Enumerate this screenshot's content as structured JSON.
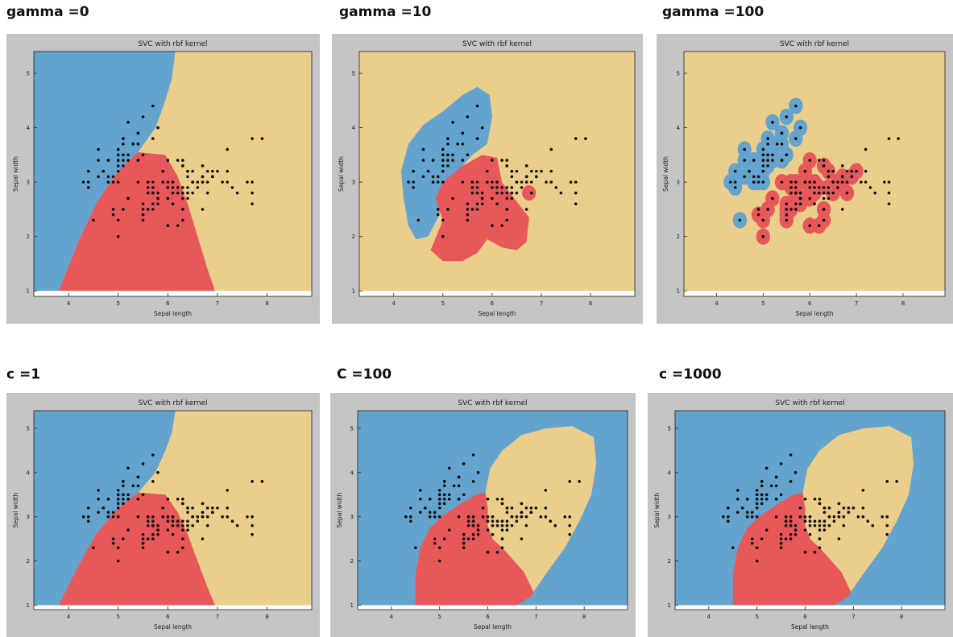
{
  "chart_data": [
    {
      "type": "scatter",
      "panel_label": "gamma =0",
      "title": "SVC with rbf kernel",
      "xlabel": "Sepal length",
      "ylabel": "Sepal width",
      "xlim": [
        3.3,
        8.9
      ],
      "ylim": [
        0.9,
        5.4
      ],
      "xticks": [
        4,
        5,
        6,
        7,
        8
      ],
      "yticks": [
        1,
        2,
        3,
        4,
        5
      ],
      "regions": [
        {
          "class": "blue",
          "color": "#64a3cd",
          "polygon": [
            [
              3.3,
              1
            ],
            [
              3.3,
              5.4
            ],
            [
              6.15,
              5.4
            ],
            [
              6.08,
              4.9
            ],
            [
              5.95,
              4.5
            ],
            [
              5.75,
              4.0
            ],
            [
              5.4,
              3.55
            ],
            [
              5.0,
              3.2
            ],
            [
              4.55,
              2.6
            ],
            [
              4.2,
              1.9
            ],
            [
              4.0,
              1.45
            ],
            [
              3.8,
              1
            ],
            [
              3.3,
              1
            ]
          ]
        },
        {
          "class": "red",
          "color": "#e8575a",
          "polygon": [
            [
              3.8,
              1
            ],
            [
              4.0,
              1.45
            ],
            [
              4.2,
              1.9
            ],
            [
              4.55,
              2.6
            ],
            [
              5.0,
              3.2
            ],
            [
              5.4,
              3.55
            ],
            [
              5.95,
              3.5
            ],
            [
              6.2,
              3.1
            ],
            [
              6.4,
              2.6
            ],
            [
              6.6,
              2.0
            ],
            [
              6.8,
              1.4
            ],
            [
              6.95,
              1
            ],
            [
              3.8,
              1
            ]
          ]
        }
      ]
    },
    {
      "type": "scatter",
      "panel_label": "gamma =10",
      "title": "SVC with rbf kernel",
      "xlabel": "Sepal length",
      "ylabel": "Sepal width",
      "xlim": [
        3.3,
        8.9
      ],
      "ylim": [
        0.9,
        5.4
      ],
      "xticks": [
        4,
        5,
        6,
        7,
        8
      ],
      "yticks": [
        1,
        2,
        3,
        4,
        5
      ],
      "regions": [
        {
          "class": "blue",
          "color": "#64a3cd",
          "polygon": [
            [
              4.3,
              2.2
            ],
            [
              4.2,
              2.7
            ],
            [
              4.15,
              3.2
            ],
            [
              4.3,
              3.7
            ],
            [
              4.6,
              4.05
            ],
            [
              5.0,
              4.3
            ],
            [
              5.4,
              4.6
            ],
            [
              5.7,
              4.75
            ],
            [
              5.95,
              4.6
            ],
            [
              6.0,
              4.2
            ],
            [
              5.9,
              3.7
            ],
            [
              5.6,
              3.5
            ],
            [
              5.3,
              3.2
            ],
            [
              5.1,
              2.85
            ],
            [
              4.9,
              2.35
            ],
            [
              4.7,
              2.0
            ],
            [
              4.45,
              1.95
            ]
          ]
        },
        {
          "class": "red",
          "color": "#e8575a",
          "polygon": [
            [
              5.0,
              2.3
            ],
            [
              4.85,
              2.7
            ],
            [
              5.0,
              3.0
            ],
            [
              5.4,
              3.3
            ],
            [
              5.8,
              3.5
            ],
            [
              6.1,
              3.45
            ],
            [
              6.2,
              3.0
            ],
            [
              6.45,
              2.7
            ],
            [
              6.75,
              2.35
            ],
            [
              6.7,
              1.9
            ],
            [
              6.5,
              1.75
            ],
            [
              6.2,
              1.8
            ],
            [
              5.9,
              1.95
            ],
            [
              5.7,
              1.7
            ],
            [
              5.4,
              1.55
            ],
            [
              5.0,
              1.55
            ],
            [
              4.75,
              1.75
            ]
          ]
        },
        {
          "class": "red",
          "color": "#e8575a",
          "circle": [
            6.75,
            2.8,
            0.14
          ]
        }
      ]
    },
    {
      "type": "scatter",
      "panel_label": "gamma =100",
      "title": "SVC with rbf kernel",
      "xlabel": "Sepal length",
      "ylabel": "Sepal width",
      "xlim": [
        3.3,
        8.9
      ],
      "ylim": [
        0.9,
        5.4
      ],
      "xticks": [
        4,
        5,
        6,
        7,
        8
      ],
      "yticks": [
        1,
        2,
        3,
        4,
        5
      ],
      "blob_radius": 0.15,
      "blobs": "per-point"
    },
    {
      "type": "scatter",
      "panel_label": "c =1",
      "title": "SVC with rbf kernel",
      "xlabel": "Sepal length",
      "ylabel": "Sepal width",
      "xlim": [
        3.3,
        8.9
      ],
      "ylim": [
        0.9,
        5.4
      ],
      "xticks": [
        4,
        5,
        6,
        7,
        8
      ],
      "yticks": [
        1,
        2,
        3,
        4,
        5
      ],
      "regions": [
        {
          "class": "blue",
          "color": "#64a3cd",
          "polygon": [
            [
              3.3,
              1
            ],
            [
              3.3,
              5.4
            ],
            [
              6.15,
              5.4
            ],
            [
              6.08,
              4.9
            ],
            [
              5.95,
              4.5
            ],
            [
              5.75,
              4.0
            ],
            [
              5.4,
              3.55
            ],
            [
              5.0,
              3.2
            ],
            [
              4.55,
              2.6
            ],
            [
              4.2,
              1.9
            ],
            [
              4.0,
              1.45
            ],
            [
              3.8,
              1
            ],
            [
              3.3,
              1
            ]
          ]
        },
        {
          "class": "red",
          "color": "#e8575a",
          "polygon": [
            [
              3.8,
              1
            ],
            [
              4.0,
              1.45
            ],
            [
              4.2,
              1.9
            ],
            [
              4.55,
              2.6
            ],
            [
              5.0,
              3.2
            ],
            [
              5.4,
              3.55
            ],
            [
              5.95,
              3.5
            ],
            [
              6.2,
              3.1
            ],
            [
              6.4,
              2.6
            ],
            [
              6.6,
              2.0
            ],
            [
              6.8,
              1.4
            ],
            [
              6.95,
              1
            ],
            [
              3.8,
              1
            ]
          ]
        }
      ]
    },
    {
      "type": "scatter",
      "panel_label": "C =100",
      "title": "SVC with rbf kernel",
      "xlabel": "Sepal length",
      "ylabel": "Sepal width",
      "xlim": [
        3.3,
        8.9
      ],
      "ylim": [
        0.9,
        5.4
      ],
      "xticks": [
        4,
        5,
        6,
        7,
        8
      ],
      "yticks": [
        1,
        2,
        3,
        4,
        5
      ],
      "regions": [
        {
          "class": "red",
          "color": "#e8575a",
          "polygon": [
            [
              4.5,
              1
            ],
            [
              4.5,
              1.7
            ],
            [
              4.6,
              2.3
            ],
            [
              4.8,
              2.75
            ],
            [
              5.1,
              3.05
            ],
            [
              5.45,
              3.3
            ],
            [
              5.75,
              3.5
            ],
            [
              5.95,
              3.55
            ],
            [
              6.0,
              3.2
            ],
            [
              6.0,
              2.8
            ],
            [
              6.1,
              2.5
            ],
            [
              6.3,
              2.3
            ],
            [
              6.75,
              1.75
            ],
            [
              7.0,
              1.4
            ],
            [
              6.9,
              1.2
            ],
            [
              6.6,
              1
            ]
          ]
        },
        {
          "class": "yellow",
          "color": "#ebce8c",
          "polygon": [
            [
              6.0,
              3.2
            ],
            [
              5.95,
              3.55
            ],
            [
              6.05,
              4.1
            ],
            [
              6.3,
              4.5
            ],
            [
              6.7,
              4.85
            ],
            [
              7.2,
              5.0
            ],
            [
              7.75,
              5.05
            ],
            [
              8.2,
              4.8
            ],
            [
              8.25,
              4.2
            ],
            [
              8.15,
              3.5
            ],
            [
              7.9,
              2.9
            ],
            [
              7.6,
              2.3
            ],
            [
              7.2,
              1.7
            ],
            [
              6.95,
              1.3
            ],
            [
              6.75,
              1.75
            ],
            [
              6.3,
              2.3
            ],
            [
              6.1,
              2.5
            ],
            [
              6.0,
              2.8
            ]
          ]
        }
      ]
    },
    {
      "type": "scatter",
      "panel_label": "c =1000",
      "title": "SVC with rbf kernel",
      "xlabel": "Sepal length",
      "ylabel": "Sepal width",
      "xlim": [
        3.3,
        8.9
      ],
      "ylim": [
        0.9,
        5.4
      ],
      "xticks": [
        4,
        5,
        6,
        7,
        8
      ],
      "yticks": [
        1,
        2,
        3,
        4,
        5
      ],
      "regions": [
        {
          "class": "red",
          "color": "#e8575a",
          "polygon": [
            [
              4.5,
              1
            ],
            [
              4.5,
              1.7
            ],
            [
              4.6,
              2.3
            ],
            [
              4.8,
              2.75
            ],
            [
              5.1,
              3.05
            ],
            [
              5.45,
              3.3
            ],
            [
              5.75,
              3.5
            ],
            [
              5.95,
              3.55
            ],
            [
              6.0,
              3.2
            ],
            [
              6.0,
              2.8
            ],
            [
              6.1,
              2.5
            ],
            [
              6.3,
              2.3
            ],
            [
              6.75,
              1.75
            ],
            [
              7.0,
              1.4
            ],
            [
              6.9,
              1.2
            ],
            [
              6.6,
              1
            ]
          ]
        },
        {
          "class": "yellow",
          "color": "#ebce8c",
          "polygon": [
            [
              6.0,
              3.2
            ],
            [
              5.95,
              3.55
            ],
            [
              6.05,
              4.1
            ],
            [
              6.3,
              4.5
            ],
            [
              6.7,
              4.85
            ],
            [
              7.2,
              5.0
            ],
            [
              7.75,
              5.05
            ],
            [
              8.2,
              4.8
            ],
            [
              8.25,
              4.2
            ],
            [
              8.15,
              3.5
            ],
            [
              7.9,
              2.9
            ],
            [
              7.6,
              2.3
            ],
            [
              7.2,
              1.7
            ],
            [
              6.95,
              1.3
            ],
            [
              6.75,
              1.75
            ],
            [
              6.3,
              2.3
            ],
            [
              6.1,
              2.5
            ],
            [
              6.0,
              2.8
            ]
          ]
        }
      ]
    }
  ],
  "points": [
    [
      5.1,
      3.5
    ],
    [
      4.9,
      3.0
    ],
    [
      4.7,
      3.2
    ],
    [
      4.6,
      3.1
    ],
    [
      5.0,
      3.6
    ],
    [
      5.4,
      3.9
    ],
    [
      4.6,
      3.4
    ],
    [
      5.0,
      3.4
    ],
    [
      4.4,
      2.9
    ],
    [
      4.9,
      3.1
    ],
    [
      5.4,
      3.7
    ],
    [
      4.8,
      3.4
    ],
    [
      4.8,
      3.0
    ],
    [
      4.3,
      3.0
    ],
    [
      5.8,
      4.0
    ],
    [
      5.7,
      4.4
    ],
    [
      5.4,
      3.9
    ],
    [
      5.1,
      3.5
    ],
    [
      5.7,
      3.8
    ],
    [
      5.1,
      3.8
    ],
    [
      5.4,
      3.4
    ],
    [
      5.1,
      3.7
    ],
    [
      4.6,
      3.6
    ],
    [
      5.1,
      3.3
    ],
    [
      4.8,
      3.4
    ],
    [
      5.0,
      3.0
    ],
    [
      5.0,
      3.4
    ],
    [
      5.2,
      3.5
    ],
    [
      5.2,
      3.4
    ],
    [
      4.7,
      3.2
    ],
    [
      4.8,
      3.1
    ],
    [
      5.4,
      3.4
    ],
    [
      5.2,
      4.1
    ],
    [
      5.5,
      4.2
    ],
    [
      5.0,
      3.2
    ],
    [
      5.5,
      3.5
    ],
    [
      4.4,
      3.0
    ],
    [
      5.1,
      3.4
    ],
    [
      5.0,
      3.5
    ],
    [
      4.5,
      2.3
    ],
    [
      4.4,
      3.2
    ],
    [
      5.0,
      3.5
    ],
    [
      5.1,
      3.8
    ],
    [
      4.8,
      3.0
    ],
    [
      5.3,
      3.7
    ],
    [
      5.0,
      3.3
    ],
    [
      7.0,
      3.2
    ],
    [
      6.4,
      3.2
    ],
    [
      6.9,
      3.1
    ],
    [
      5.5,
      2.3
    ],
    [
      6.5,
      2.8
    ],
    [
      5.7,
      2.8
    ],
    [
      6.3,
      3.3
    ],
    [
      4.9,
      2.4
    ],
    [
      6.6,
      2.9
    ],
    [
      5.2,
      2.7
    ],
    [
      5.0,
      2.0
    ],
    [
      5.9,
      3.0
    ],
    [
      6.0,
      2.2
    ],
    [
      6.1,
      2.9
    ],
    [
      5.6,
      2.9
    ],
    [
      6.7,
      3.1
    ],
    [
      5.6,
      3.0
    ],
    [
      5.8,
      2.7
    ],
    [
      6.2,
      2.2
    ],
    [
      5.6,
      2.5
    ],
    [
      5.9,
      3.2
    ],
    [
      6.1,
      2.8
    ],
    [
      6.3,
      2.5
    ],
    [
      6.4,
      2.9
    ],
    [
      6.6,
      3.0
    ],
    [
      6.8,
      2.8
    ],
    [
      6.7,
      3.0
    ],
    [
      6.0,
      2.9
    ],
    [
      5.7,
      2.6
    ],
    [
      5.5,
      2.4
    ],
    [
      5.5,
      2.4
    ],
    [
      5.8,
      2.7
    ],
    [
      6.0,
      2.7
    ],
    [
      5.4,
      3.0
    ],
    [
      6.0,
      3.4
    ],
    [
      6.7,
      3.1
    ],
    [
      6.3,
      2.3
    ],
    [
      5.6,
      3.0
    ],
    [
      5.5,
      2.5
    ],
    [
      5.5,
      2.6
    ],
    [
      6.1,
      3.0
    ],
    [
      5.8,
      2.6
    ],
    [
      5.0,
      2.3
    ],
    [
      5.7,
      3.0
    ],
    [
      5.7,
      2.9
    ],
    [
      6.2,
      2.9
    ],
    [
      5.1,
      2.5
    ],
    [
      5.7,
      2.8
    ],
    [
      6.3,
      3.3
    ],
    [
      5.8,
      2.7
    ],
    [
      7.1,
      3.0
    ],
    [
      6.3,
      2.9
    ],
    [
      6.5,
      3.0
    ],
    [
      7.6,
      3.0
    ],
    [
      4.9,
      2.5
    ],
    [
      7.3,
      2.9
    ],
    [
      6.7,
      2.5
    ],
    [
      7.2,
      3.6
    ],
    [
      6.5,
      3.2
    ],
    [
      6.4,
      2.7
    ],
    [
      6.8,
      3.0
    ],
    [
      5.7,
      2.5
    ],
    [
      5.8,
      2.8
    ],
    [
      6.4,
      3.2
    ],
    [
      6.5,
      3.0
    ],
    [
      7.7,
      3.8
    ],
    [
      7.7,
      2.6
    ],
    [
      6.0,
      2.2
    ],
    [
      6.9,
      3.2
    ],
    [
      5.6,
      2.8
    ],
    [
      7.7,
      2.8
    ],
    [
      6.3,
      2.7
    ],
    [
      6.7,
      3.3
    ],
    [
      7.2,
      3.2
    ],
    [
      6.2,
      2.8
    ],
    [
      6.1,
      3.0
    ],
    [
      6.4,
      2.8
    ],
    [
      7.2,
      3.0
    ],
    [
      7.4,
      2.8
    ],
    [
      7.9,
      3.8
    ],
    [
      6.4,
      2.8
    ],
    [
      6.3,
      2.8
    ],
    [
      6.1,
      2.6
    ],
    [
      7.7,
      3.0
    ],
    [
      6.3,
      3.4
    ],
    [
      6.4,
      3.1
    ],
    [
      6.0,
      3.0
    ],
    [
      6.9,
      3.1
    ],
    [
      6.7,
      3.1
    ],
    [
      6.9,
      3.1
    ],
    [
      6.8,
      3.2
    ],
    [
      6.7,
      3.3
    ],
    [
      6.7,
      3.0
    ],
    [
      6.3,
      2.5
    ],
    [
      6.5,
      3.0
    ],
    [
      6.2,
      3.4
    ],
    [
      5.9,
      3.0
    ]
  ]
}
